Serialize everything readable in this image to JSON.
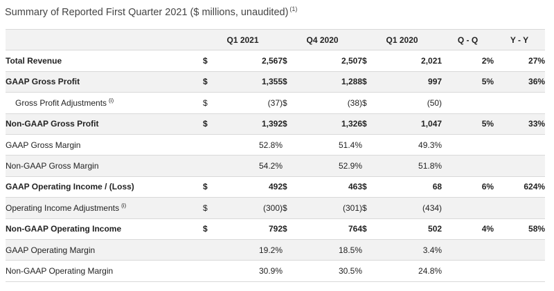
{
  "title": {
    "text": "Summary of Reported First Quarter 2021 ($ millions, unaudited)",
    "note": "(1)"
  },
  "table": {
    "columns": [
      "Q1 2021",
      "Q4 2020",
      "Q1 2020",
      "Q - Q",
      "Y - Y"
    ],
    "rows": [
      {
        "label": "Total Revenue",
        "note": "",
        "bold": true,
        "shade": false,
        "indent": false,
        "type": "money",
        "cur": [
          "$",
          "$",
          "$"
        ],
        "values": [
          "2,567",
          "2,507",
          "2,021"
        ],
        "qoq": "2%",
        "yoy": "27%"
      },
      {
        "label": "GAAP Gross Profit",
        "note": "",
        "bold": true,
        "shade": true,
        "indent": false,
        "type": "money",
        "cur": [
          "$",
          "$",
          "$"
        ],
        "values": [
          "1,355",
          "1,288",
          "997"
        ],
        "qoq": "5%",
        "yoy": "36%"
      },
      {
        "label": "Gross Profit Adjustments",
        "note": "(i)",
        "bold": false,
        "shade": false,
        "indent": true,
        "type": "money",
        "cur": [
          "$",
          "$",
          "$"
        ],
        "values": [
          "(37)",
          "(38)",
          "(50)"
        ],
        "qoq": "",
        "yoy": ""
      },
      {
        "label": "Non-GAAP Gross Profit",
        "note": "",
        "bold": true,
        "shade": true,
        "indent": false,
        "type": "money",
        "cur": [
          "$",
          "$",
          "$"
        ],
        "values": [
          "1,392",
          "1,326",
          "1,047"
        ],
        "qoq": "5%",
        "yoy": "33%"
      },
      {
        "label": "GAAP Gross Margin",
        "note": "",
        "bold": false,
        "shade": false,
        "indent": false,
        "type": "margin",
        "cur": [
          "",
          "",
          ""
        ],
        "values": [
          "52.8%",
          "51.4%",
          "49.3%"
        ],
        "qoq": "",
        "yoy": ""
      },
      {
        "label": "Non-GAAP Gross Margin",
        "note": "",
        "bold": false,
        "shade": true,
        "indent": false,
        "type": "margin",
        "cur": [
          "",
          "",
          ""
        ],
        "values": [
          "54.2%",
          "52.9%",
          "51.8%"
        ],
        "qoq": "",
        "yoy": ""
      },
      {
        "label": "GAAP Operating Income / (Loss)",
        "note": "",
        "bold": true,
        "shade": false,
        "indent": false,
        "type": "money",
        "cur": [
          "$",
          "$",
          "$"
        ],
        "values": [
          "492",
          "463",
          "68"
        ],
        "qoq": "6%",
        "yoy": "624%"
      },
      {
        "label": "Operating Income Adjustments",
        "note": "(i)",
        "bold": false,
        "shade": true,
        "indent": false,
        "type": "money",
        "cur": [
          "$",
          "$",
          "$"
        ],
        "values": [
          "(300)",
          "(301)",
          "(434)"
        ],
        "qoq": "",
        "yoy": ""
      },
      {
        "label": "Non-GAAP Operating Income",
        "note": "",
        "bold": true,
        "shade": false,
        "indent": false,
        "type": "money",
        "cur": [
          "$",
          "$",
          "$"
        ],
        "values": [
          "792",
          "764",
          "502"
        ],
        "qoq": "4%",
        "yoy": "58%"
      },
      {
        "label": "GAAP Operating Margin",
        "note": "",
        "bold": false,
        "shade": true,
        "indent": false,
        "type": "margin",
        "cur": [
          "",
          "",
          ""
        ],
        "values": [
          "19.2%",
          "18.5%",
          "3.4%"
        ],
        "qoq": "",
        "yoy": ""
      },
      {
        "label": "Non-GAAP Operating Margin",
        "note": "",
        "bold": false,
        "shade": false,
        "indent": false,
        "type": "margin",
        "cur": [
          "",
          "",
          ""
        ],
        "values": [
          "30.9%",
          "30.5%",
          "24.8%"
        ],
        "qoq": "",
        "yoy": ""
      }
    ]
  }
}
